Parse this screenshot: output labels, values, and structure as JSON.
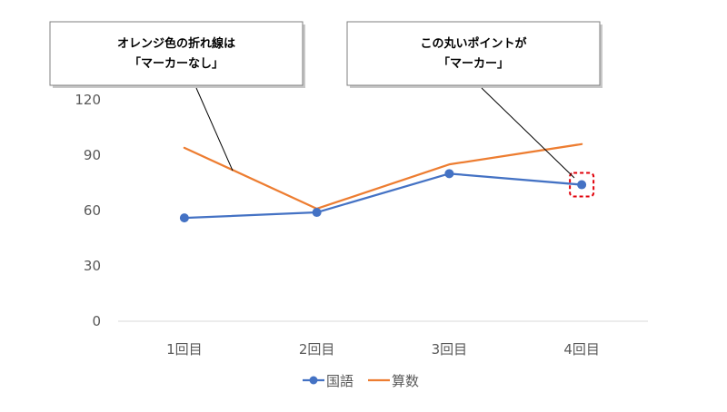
{
  "colors": {
    "series_1": "#4472c4",
    "series_2": "#ed7d31",
    "axis": "#d9d9d9",
    "text": "#595959",
    "highlight": "#e0000a",
    "callout_border": "#7f7f7f"
  },
  "chart_data": {
    "type": "line",
    "categories": [
      "1回目",
      "2回目",
      "3回目",
      "4回目"
    ],
    "series": [
      {
        "name": "国語",
        "values": [
          56,
          59,
          80,
          74
        ],
        "marker": "circle",
        "color": "#4472c4"
      },
      {
        "name": "算数",
        "values": [
          94,
          61,
          85,
          96
        ],
        "marker": "none",
        "color": "#ed7d31"
      }
    ],
    "ylim": [
      0,
      120
    ],
    "yticks": [
      "0",
      "30",
      "60",
      "90",
      "120"
    ],
    "grid": false,
    "legend": "bottom",
    "title": "",
    "xlabel": "",
    "ylabel": ""
  },
  "callouts": [
    {
      "lines": [
        "オレンジ色の折れ線は",
        "「マーカーなし」"
      ],
      "target_series": 1,
      "target_point": 0
    },
    {
      "lines": [
        "この丸いポイントが",
        "「マーカー」"
      ],
      "target_series": 0,
      "target_point": 3
    }
  ]
}
